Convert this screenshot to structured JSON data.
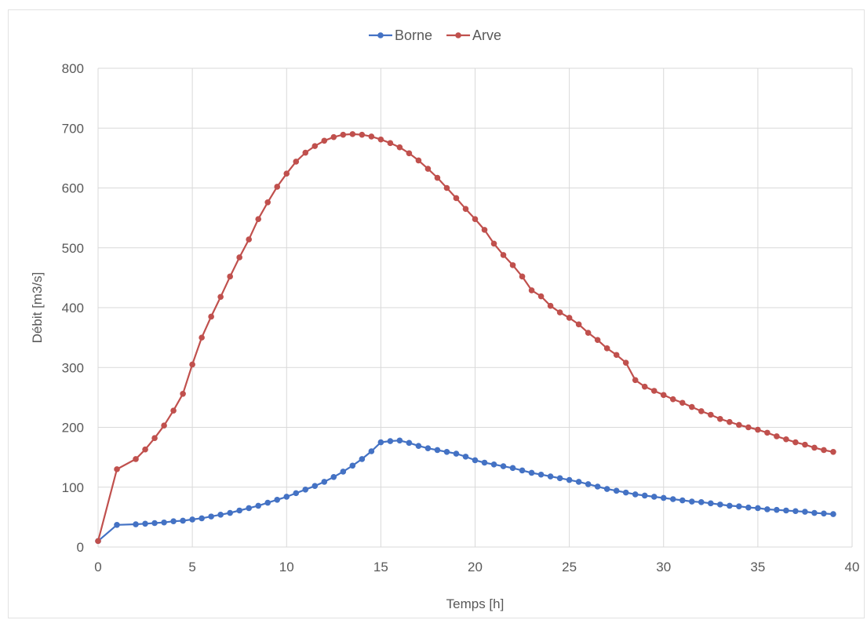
{
  "chart_data": {
    "type": "line",
    "title": "",
    "xlabel": "Temps [h]",
    "ylabel": "Débit [m3/s]",
    "xlim": [
      0,
      40
    ],
    "ylim": [
      0,
      800
    ],
    "xticks": [
      0,
      5,
      10,
      15,
      20,
      25,
      30,
      35,
      40
    ],
    "yticks": [
      0,
      100,
      200,
      300,
      400,
      500,
      600,
      700,
      800
    ],
    "grid": true,
    "legend_position": "top-center",
    "series": [
      {
        "name": "Borne",
        "color": "#4472c4",
        "x": [
          0,
          1,
          2,
          2.5,
          3,
          3.5,
          4,
          4.5,
          5,
          5.5,
          6,
          6.5,
          7,
          7.5,
          8,
          8.5,
          9,
          9.5,
          10,
          10.5,
          11,
          11.5,
          12,
          12.5,
          13,
          13.5,
          14,
          14.5,
          15,
          15.5,
          16,
          16.5,
          17,
          17.5,
          18,
          18.5,
          19,
          19.5,
          20,
          20.5,
          21,
          21.5,
          22,
          22.5,
          23,
          23.5,
          24,
          24.5,
          25,
          25.5,
          26,
          26.5,
          27,
          27.5,
          28,
          28.5,
          29,
          29.5,
          30,
          30.5,
          31,
          31.5,
          32,
          32.5,
          33,
          33.5,
          34,
          34.5,
          35,
          35.5,
          36,
          36.5,
          37,
          37.5,
          38,
          38.5,
          39
        ],
        "y": [
          10,
          37,
          38,
          39,
          40,
          41,
          43,
          44,
          46,
          48,
          51,
          54,
          57,
          61,
          65,
          69,
          74,
          79,
          84,
          90,
          96,
          102,
          109,
          117,
          126,
          136,
          147,
          160,
          175,
          177,
          178,
          174,
          169,
          165,
          162,
          159,
          156,
          151,
          145,
          141,
          138,
          135,
          132,
          128,
          124,
          121,
          118,
          115,
          112,
          109,
          105,
          101,
          97,
          94,
          91,
          88,
          86,
          84,
          82,
          80,
          78,
          76,
          75,
          73,
          71,
          69,
          68,
          66,
          65,
          63,
          62,
          61,
          60,
          59,
          57,
          56,
          55
        ]
      },
      {
        "name": "Arve",
        "color": "#c0504d",
        "x": [
          0,
          1,
          2,
          2.5,
          3,
          3.5,
          4,
          4.5,
          5,
          5.5,
          6,
          6.5,
          7,
          7.5,
          8,
          8.5,
          9,
          9.5,
          10,
          10.5,
          11,
          11.5,
          12,
          12.5,
          13,
          13.5,
          14,
          14.5,
          15,
          15.5,
          16,
          16.5,
          17,
          17.5,
          18,
          18.5,
          19,
          19.5,
          20,
          20.5,
          21,
          21.5,
          22,
          22.5,
          23,
          23.5,
          24,
          24.5,
          25,
          25.5,
          26,
          26.5,
          27,
          27.5,
          28,
          28.5,
          29,
          29.5,
          30,
          30.5,
          31,
          31.5,
          32,
          32.5,
          33,
          33.5,
          34,
          34.5,
          35,
          35.5,
          36,
          36.5,
          37,
          37.5,
          38,
          38.5,
          39
        ],
        "y": [
          10,
          130,
          147,
          163,
          182,
          203,
          228,
          256,
          305,
          350,
          385,
          418,
          452,
          484,
          514,
          548,
          576,
          602,
          624,
          644,
          659,
          670,
          679,
          685,
          689,
          690,
          689,
          686,
          681,
          675,
          668,
          658,
          646,
          632,
          617,
          600,
          583,
          565,
          548,
          530,
          507,
          488,
          471,
          452,
          429,
          419,
          403,
          392,
          383,
          372,
          358,
          346,
          332,
          321,
          308,
          279,
          268,
          261,
          254,
          247,
          241,
          234,
          227,
          221,
          214,
          209,
          204,
          200,
          196,
          191,
          185,
          180,
          175,
          171,
          166,
          162,
          159
        ]
      }
    ]
  }
}
